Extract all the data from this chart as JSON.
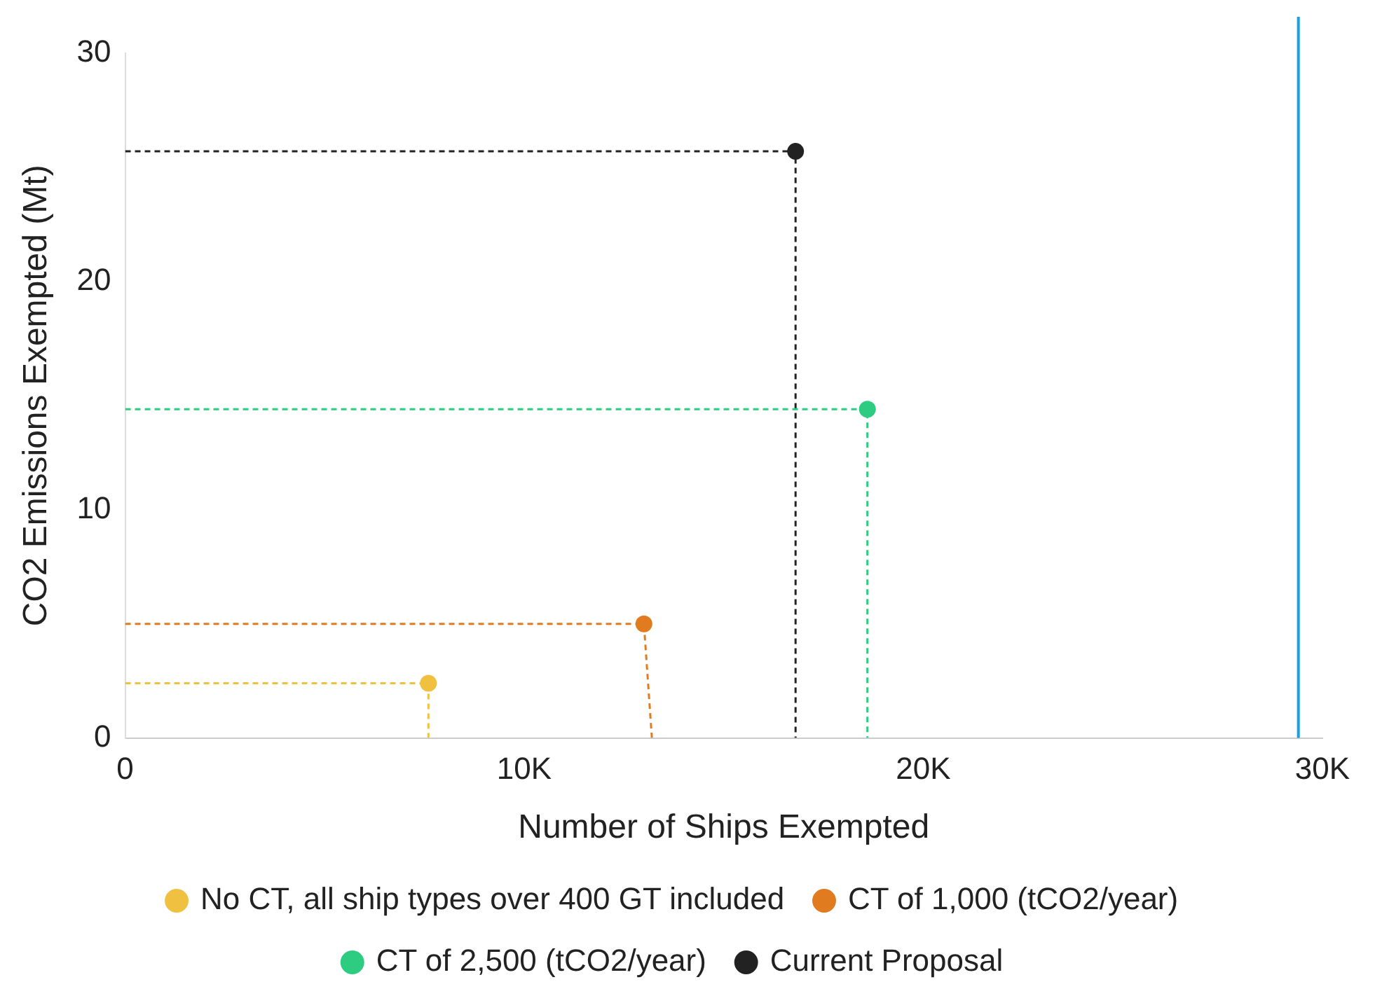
{
  "chart_data": {
    "type": "line",
    "xlabel": "Number of Ships Exempted",
    "ylabel": "CO2 Emissions Exempted (Mt)",
    "xlim": [
      0,
      30000
    ],
    "xticks": [
      0,
      {
        "value": 10000,
        "label": "10K"
      },
      {
        "value": 20000,
        "label": "20K"
      },
      {
        "value": 30000,
        "label": "30K"
      }
    ],
    "ylim": [
      0,
      30
    ],
    "yticks": [
      0,
      10,
      20,
      30
    ],
    "grid": false,
    "legend": "bottom",
    "line_style": "dashed",
    "series": [
      {
        "color": "#f0c040",
        "marker": "none",
        "x": [
          0,
          7600,
          7600
        ],
        "values": [
          2.4,
          2.4,
          0
        ]
      },
      {
        "color": "#e07b20",
        "marker": "none",
        "x": [
          0,
          13000,
          13200
        ],
        "values": [
          5,
          5,
          0
        ]
      },
      {
        "color": "#2ecc80",
        "marker": "none",
        "x": [
          0,
          18600,
          18600
        ],
        "values": [
          14.4,
          14.4,
          0
        ]
      },
      {
        "color": "#222222",
        "marker": "none",
        "x": [
          0,
          16800,
          16800
        ],
        "values": [
          25.7,
          25.7,
          0
        ]
      },
      {
        "type": "scatter",
        "name": "No CT, all ship types over 400 GT included",
        "color": "#f0c040",
        "marker": "circle",
        "x": [
          7600
        ],
        "values": [
          2.4
        ]
      },
      {
        "type": "scatter",
        "name": "CT of 1,000 (tCO2/year)",
        "color": "#e07b20",
        "marker": "circle",
        "x": [
          13000
        ],
        "values": [
          5
        ]
      },
      {
        "type": "scatter",
        "name": "CT of 2,500 (tCO2/year)",
        "color": "#2ecc80",
        "marker": "circle",
        "x": [
          18600
        ],
        "values": [
          14.4
        ]
      },
      {
        "type": "scatter",
        "name": "Current Proposal",
        "color": "#222222",
        "marker": "circle",
        "x": [
          16800
        ],
        "values": [
          25.7
        ]
      }
    ],
    "ref_lines": [
      {
        "axis": "x",
        "value": 29400,
        "color": "#1aa0e0",
        "line_style": "solid"
      }
    ]
  }
}
